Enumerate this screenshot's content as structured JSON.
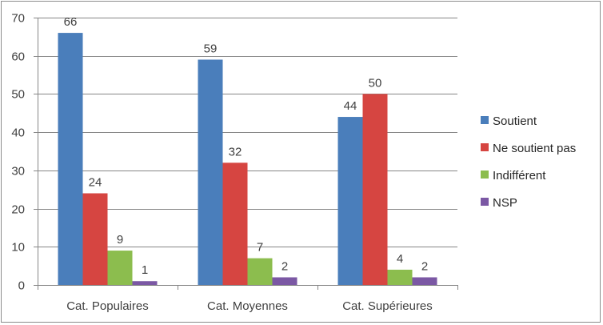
{
  "chart_data": {
    "type": "bar",
    "categories": [
      "Cat. Populaires",
      "Cat. Moyennes",
      "Cat. Supérieures"
    ],
    "series": [
      {
        "name": "Soutient",
        "color": "#4a7ebb",
        "values": [
          66,
          59,
          44
        ]
      },
      {
        "name": "Ne soutient pas",
        "color": "#d64541",
        "values": [
          24,
          32,
          50
        ]
      },
      {
        "name": "Indifférent",
        "color": "#8cbd4e",
        "values": [
          9,
          7,
          4
        ]
      },
      {
        "name": "NSP",
        "color": "#7b58a4",
        "values": [
          1,
          2,
          2
        ]
      }
    ],
    "y_ticks": [
      "0",
      "10",
      "20",
      "30",
      "40",
      "50",
      "60",
      "70"
    ],
    "ylim": [
      0,
      70
    ],
    "grid": true,
    "legend_position": "right",
    "data_labels": true
  }
}
